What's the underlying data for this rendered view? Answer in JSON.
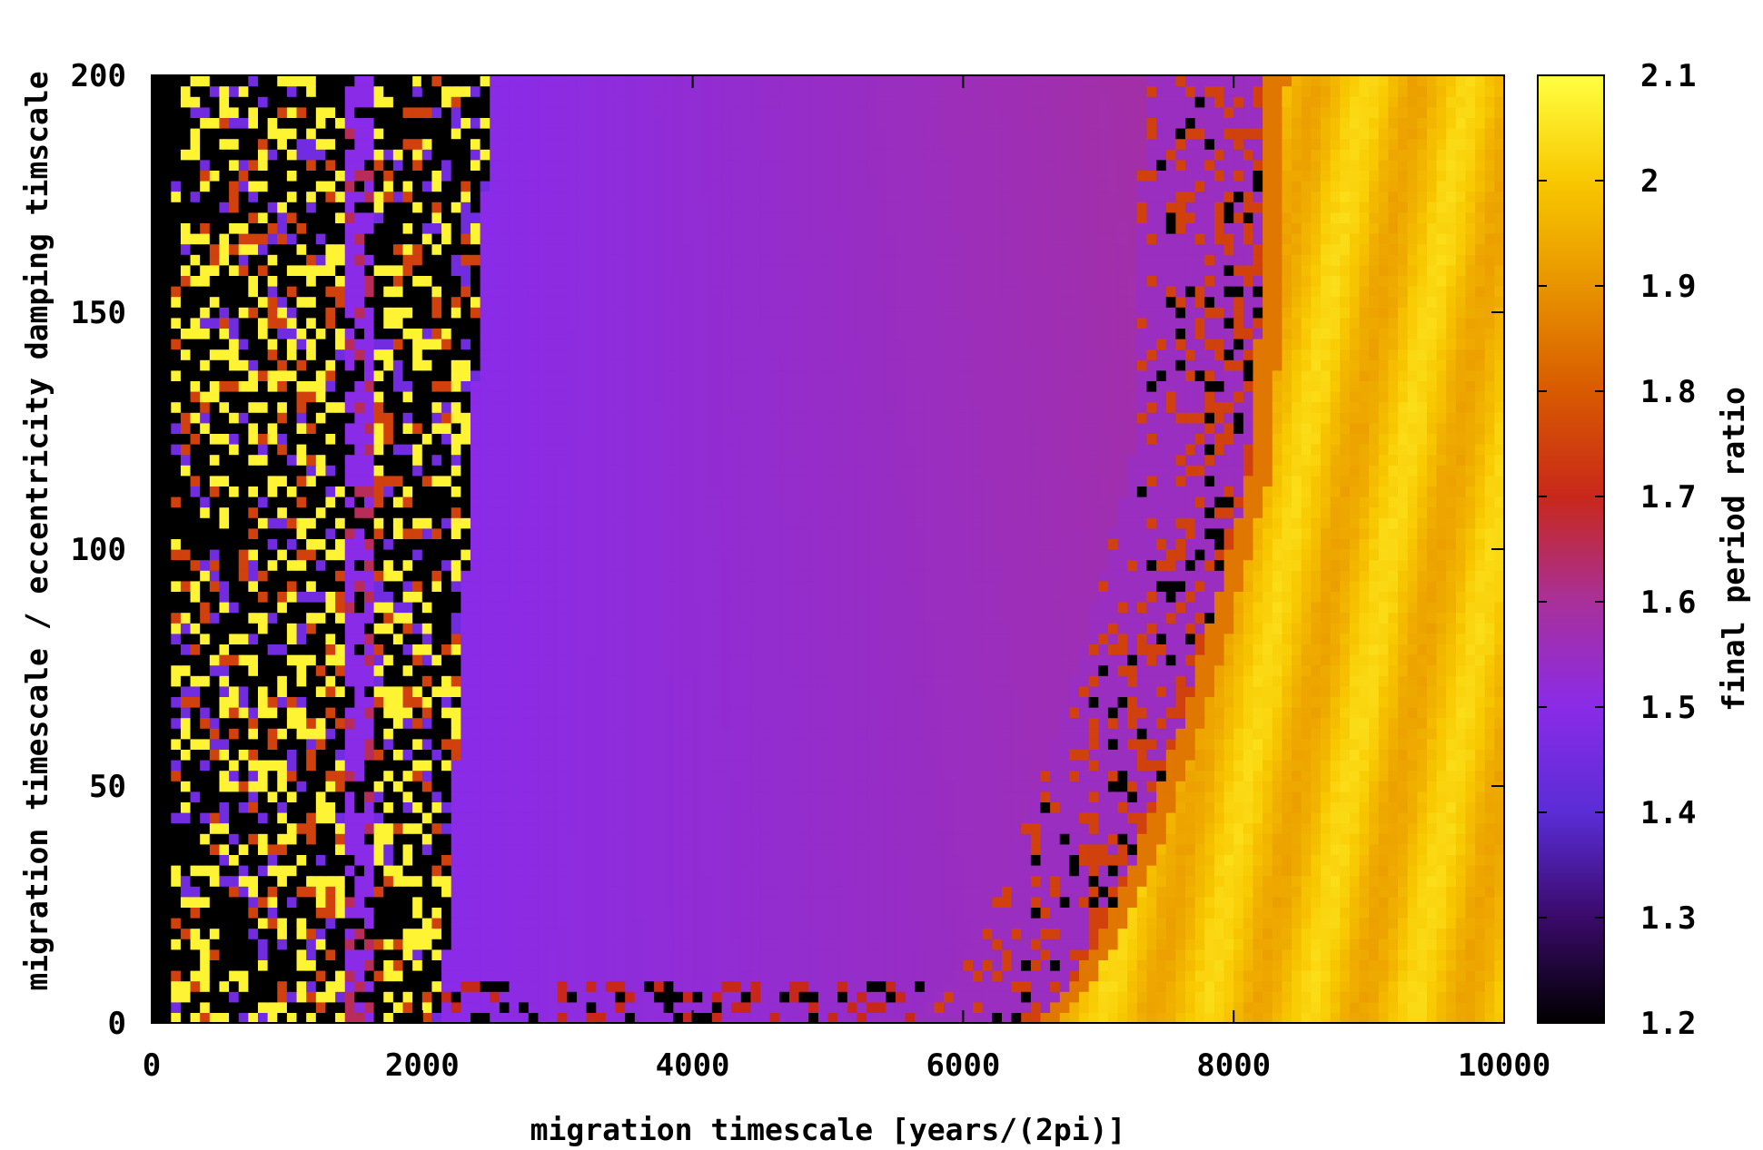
{
  "chart_data": {
    "type": "heatmap",
    "title": "",
    "xlabel": "migration timescale [years/(2pi)]",
    "ylabel": "migration timescale / eccentricity damping timscale",
    "colorbar_label": "final period ratio",
    "xlim": [
      0,
      10000
    ],
    "ylim": [
      0,
      200
    ],
    "x_ticks": [
      "0",
      "2000",
      "4000",
      "6000",
      "8000",
      "10000"
    ],
    "x_tick_values": [
      0,
      2000,
      4000,
      6000,
      8000,
      10000
    ],
    "y_ticks": [
      "0",
      "50",
      "100",
      "150",
      "200"
    ],
    "y_tick_values": [
      0,
      50,
      100,
      150,
      200
    ],
    "colorbar_ticks": [
      "1.2",
      "1.3",
      "1.4",
      "1.5",
      "1.6",
      "1.7",
      "1.8",
      "1.9",
      "2",
      "2.1"
    ],
    "colorbar_values": [
      1.2,
      1.3,
      1.4,
      1.5,
      1.6,
      1.7,
      1.8,
      1.9,
      2.0,
      2.1
    ],
    "colormap": [
      {
        "value": 1.2,
        "color": "#000000"
      },
      {
        "value": 1.3,
        "color": "#3a0a6a"
      },
      {
        "value": 1.4,
        "color": "#5a2dd6"
      },
      {
        "value": 1.5,
        "color": "#8a2be8"
      },
      {
        "value": 1.6,
        "color": "#a8309a"
      },
      {
        "value": 1.7,
        "color": "#c8281a"
      },
      {
        "value": 1.8,
        "color": "#d85a00"
      },
      {
        "value": 1.9,
        "color": "#e89400"
      },
      {
        "value": 2.0,
        "color": "#f8c800"
      },
      {
        "value": 2.1,
        "color": "#ffff40"
      }
    ],
    "regions": [
      {
        "x_range": [
          0,
          2300
        ],
        "description": "chaotic mix of 1.2 and ~2.0-2.1 with scattered 1.5"
      },
      {
        "x_range": [
          2300,
          6500
        ],
        "description": "predominantly ~1.5 with slight gradient to ~1.55"
      },
      {
        "x_range": [
          6500,
          8200
        ],
        "description": "transition zone ~1.5-1.8 with scattered 1.2 points"
      },
      {
        "x_range": [
          8200,
          10000
        ],
        "description": "~1.95-2.05 with diagonal striations"
      }
    ],
    "grid": false
  }
}
